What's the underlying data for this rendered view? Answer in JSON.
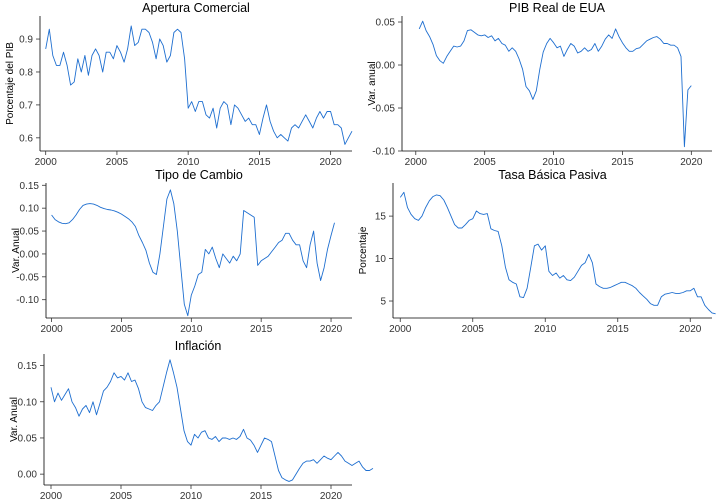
{
  "colors": {
    "line": "#1f6fd0",
    "axis": "#000000"
  },
  "chart_data": [
    {
      "id": "apertura",
      "type": "line",
      "title": "Apertura Comercial",
      "xlabel": "",
      "ylabel": "Porcentaje del PIB",
      "xlim": [
        1999.6,
        2021.5
      ],
      "ylim": [
        0.56,
        0.97
      ],
      "xticks": [
        2000,
        2005,
        2010,
        2015,
        2020
      ],
      "xticklabels": [
        "2000",
        "2005",
        "2010",
        "2015",
        "2020"
      ],
      "yticks": [
        0.6,
        0.7,
        0.8,
        0.9
      ],
      "yticklabels": [
        "0.6",
        "0.7",
        "0.8",
        "0.9"
      ],
      "x_start": 2000.0,
      "x_step": 0.25,
      "values": [
        0.87,
        0.93,
        0.85,
        0.82,
        0.82,
        0.86,
        0.82,
        0.76,
        0.77,
        0.84,
        0.8,
        0.85,
        0.79,
        0.85,
        0.87,
        0.85,
        0.8,
        0.86,
        0.86,
        0.84,
        0.88,
        0.86,
        0.83,
        0.87,
        0.94,
        0.88,
        0.89,
        0.93,
        0.93,
        0.92,
        0.89,
        0.84,
        0.9,
        0.88,
        0.83,
        0.85,
        0.92,
        0.93,
        0.92,
        0.84,
        0.69,
        0.71,
        0.68,
        0.71,
        0.71,
        0.67,
        0.66,
        0.69,
        0.63,
        0.69,
        0.71,
        0.7,
        0.64,
        0.7,
        0.69,
        0.67,
        0.65,
        0.66,
        0.64,
        0.64,
        0.61,
        0.66,
        0.7,
        0.65,
        0.62,
        0.6,
        0.61,
        0.6,
        0.59,
        0.63,
        0.64,
        0.63,
        0.65,
        0.67,
        0.65,
        0.63,
        0.66,
        0.68,
        0.66,
        0.68,
        0.68,
        0.64,
        0.64,
        0.63,
        0.58,
        0.6,
        0.62
      ]
    },
    {
      "id": "pib",
      "type": "line",
      "title": "PIB Real de EUA",
      "xlabel": "",
      "ylabel": "Var. anual",
      "xlim": [
        1999.0,
        2021.5
      ],
      "ylim": [
        -0.1,
        0.057
      ],
      "xticks": [
        2000,
        2005,
        2010,
        2015,
        2020
      ],
      "xticklabels": [
        "2000",
        "2005",
        "2010",
        "2015",
        "2020"
      ],
      "yticks": [
        -0.1,
        -0.05,
        0.0,
        0.05
      ],
      "yticklabels": [
        "-0.10",
        "-0.05",
        "0.00",
        "0.05"
      ],
      "x_start": 2000.25,
      "x_step": 0.25,
      "values": [
        0.042,
        0.051,
        0.04,
        0.033,
        0.024,
        0.011,
        0.005,
        0.002,
        0.01,
        0.016,
        0.022,
        0.021,
        0.022,
        0.028,
        0.04,
        0.041,
        0.038,
        0.035,
        0.034,
        0.035,
        0.032,
        0.034,
        0.028,
        0.031,
        0.025,
        0.023,
        0.016,
        0.02,
        0.016,
        0.007,
        -0.005,
        -0.025,
        -0.03,
        -0.04,
        -0.03,
        -0.005,
        0.015,
        0.025,
        0.031,
        0.026,
        0.02,
        0.022,
        0.01,
        0.018,
        0.025,
        0.022,
        0.014,
        0.016,
        0.02,
        0.016,
        0.018,
        0.025,
        0.016,
        0.022,
        0.03,
        0.035,
        0.031,
        0.042,
        0.033,
        0.026,
        0.02,
        0.016,
        0.016,
        0.019,
        0.02,
        0.024,
        0.028,
        0.03,
        0.032,
        0.033,
        0.03,
        0.025,
        0.025,
        0.023,
        0.023,
        0.02,
        0.01,
        -0.095,
        -0.029,
        -0.024
      ]
    },
    {
      "id": "tipo",
      "type": "line",
      "title": "Tipo de Cambio",
      "xlabel": "",
      "ylabel": "Var. Anual",
      "xlim": [
        1999.6,
        2021.5
      ],
      "ylim": [
        -0.14,
        0.155
      ],
      "xticks": [
        2000,
        2005,
        2010,
        2015,
        2020
      ],
      "xticklabels": [
        "2000",
        "2005",
        "2010",
        "2015",
        "2020"
      ],
      "yticks": [
        -0.1,
        -0.05,
        0.0,
        0.05,
        0.1,
        0.15
      ],
      "yticklabels": [
        "-0.10",
        "-0.05",
        "0.00",
        "0.05",
        "0.10",
        "0.15"
      ],
      "x_start": 2000.0,
      "x_step": 0.25,
      "values": [
        0.085,
        0.075,
        0.07,
        0.067,
        0.066,
        0.068,
        0.075,
        0.085,
        0.097,
        0.106,
        0.109,
        0.11,
        0.109,
        0.106,
        0.102,
        0.099,
        0.097,
        0.096,
        0.094,
        0.091,
        0.087,
        0.082,
        0.077,
        0.07,
        0.06,
        0.04,
        0.025,
        0.008,
        -0.02,
        -0.04,
        -0.045,
        0.0,
        0.06,
        0.12,
        0.14,
        0.11,
        0.05,
        -0.03,
        -0.11,
        -0.135,
        -0.09,
        -0.07,
        -0.045,
        -0.04,
        0.01,
        0.0,
        0.015,
        -0.01,
        -0.03,
        0.0,
        -0.01,
        -0.02,
        -0.005,
        -0.015,
        0.0,
        0.095,
        0.09,
        0.085,
        0.08,
        -0.025,
        -0.015,
        -0.01,
        -0.005,
        0.005,
        0.015,
        0.025,
        0.03,
        0.045,
        0.045,
        0.03,
        0.02,
        0.02,
        -0.015,
        -0.03,
        0.02,
        0.05,
        -0.02,
        -0.058,
        -0.03,
        0.01,
        0.04,
        0.068
      ]
    },
    {
      "id": "tasa",
      "type": "line",
      "title": "Tasa Básica Pasiva",
      "xlabel": "",
      "ylabel": "Porcentaje",
      "xlim": [
        1999.5,
        2021.5
      ],
      "ylim": [
        3.0,
        18.9
      ],
      "xticks": [
        2000,
        2005,
        2010,
        2015,
        2020
      ],
      "xticklabels": [
        "2000",
        "2005",
        "2010",
        "2015",
        "2020"
      ],
      "yticks": [
        5,
        10,
        15
      ],
      "yticklabels": [
        "5",
        "10",
        "15"
      ],
      "x_start": 2000.0,
      "x_step": 0.25,
      "values": [
        17.2,
        17.8,
        16.0,
        15.2,
        14.7,
        14.5,
        15.0,
        16.0,
        16.8,
        17.3,
        17.5,
        17.4,
        16.9,
        16.0,
        15.0,
        14.0,
        13.6,
        13.6,
        14.0,
        14.5,
        14.7,
        15.6,
        15.3,
        15.2,
        15.3,
        13.5,
        13.3,
        13.2,
        11.5,
        9.0,
        7.5,
        7.2,
        7.0,
        5.5,
        5.4,
        6.5,
        9.0,
        11.5,
        11.7,
        11.0,
        11.5,
        8.5,
        8.0,
        8.3,
        7.7,
        8.0,
        7.5,
        7.4,
        7.8,
        8.5,
        9.2,
        9.5,
        10.5,
        9.5,
        7.0,
        6.7,
        6.5,
        6.5,
        6.6,
        6.8,
        7.0,
        7.2,
        7.2,
        7.0,
        6.8,
        6.5,
        6.0,
        5.6,
        5.2,
        4.7,
        4.5,
        4.5,
        5.5,
        5.8,
        5.9,
        6.0,
        5.9,
        5.9,
        6.0,
        6.2,
        6.2,
        6.5,
        5.5,
        5.5,
        4.5,
        4.0,
        3.6,
        3.5
      ]
    },
    {
      "id": "inflacion",
      "type": "line",
      "title": "Inflación",
      "xlabel": "",
      "ylabel": "Var. Anual",
      "xlim": [
        1999.5,
        2021.5
      ],
      "ylim": [
        -0.015,
        0.166
      ],
      "xticks": [
        2000,
        2005,
        2010,
        2015,
        2020
      ],
      "xticklabels": [
        "2000",
        "2005",
        "2010",
        "2015",
        "2020"
      ],
      "yticks": [
        0.0,
        0.05,
        0.1,
        0.15
      ],
      "yticklabels": [
        "0.00",
        "0.05",
        "0.10",
        "0.15"
      ],
      "x_start": 2000.0,
      "x_step": 0.25,
      "values": [
        0.12,
        0.1,
        0.112,
        0.102,
        0.11,
        0.118,
        0.1,
        0.092,
        0.08,
        0.09,
        0.095,
        0.085,
        0.1,
        0.082,
        0.098,
        0.115,
        0.12,
        0.128,
        0.14,
        0.133,
        0.135,
        0.13,
        0.14,
        0.128,
        0.13,
        0.118,
        0.1,
        0.092,
        0.09,
        0.088,
        0.095,
        0.1,
        0.12,
        0.14,
        0.158,
        0.14,
        0.12,
        0.09,
        0.06,
        0.045,
        0.04,
        0.055,
        0.05,
        0.058,
        0.06,
        0.05,
        0.048,
        0.052,
        0.045,
        0.05,
        0.05,
        0.048,
        0.05,
        0.048,
        0.052,
        0.062,
        0.05,
        0.047,
        0.04,
        0.03,
        0.04,
        0.05,
        0.048,
        0.045,
        0.025,
        0.005,
        -0.005,
        -0.008,
        -0.01,
        -0.008,
        0.0,
        0.008,
        0.015,
        0.018,
        0.018,
        0.02,
        0.015,
        0.02,
        0.025,
        0.022,
        0.02,
        0.025,
        0.03,
        0.025,
        0.018,
        0.015,
        0.012,
        0.015,
        0.018,
        0.01,
        0.005,
        0.005,
        0.008
      ]
    }
  ]
}
